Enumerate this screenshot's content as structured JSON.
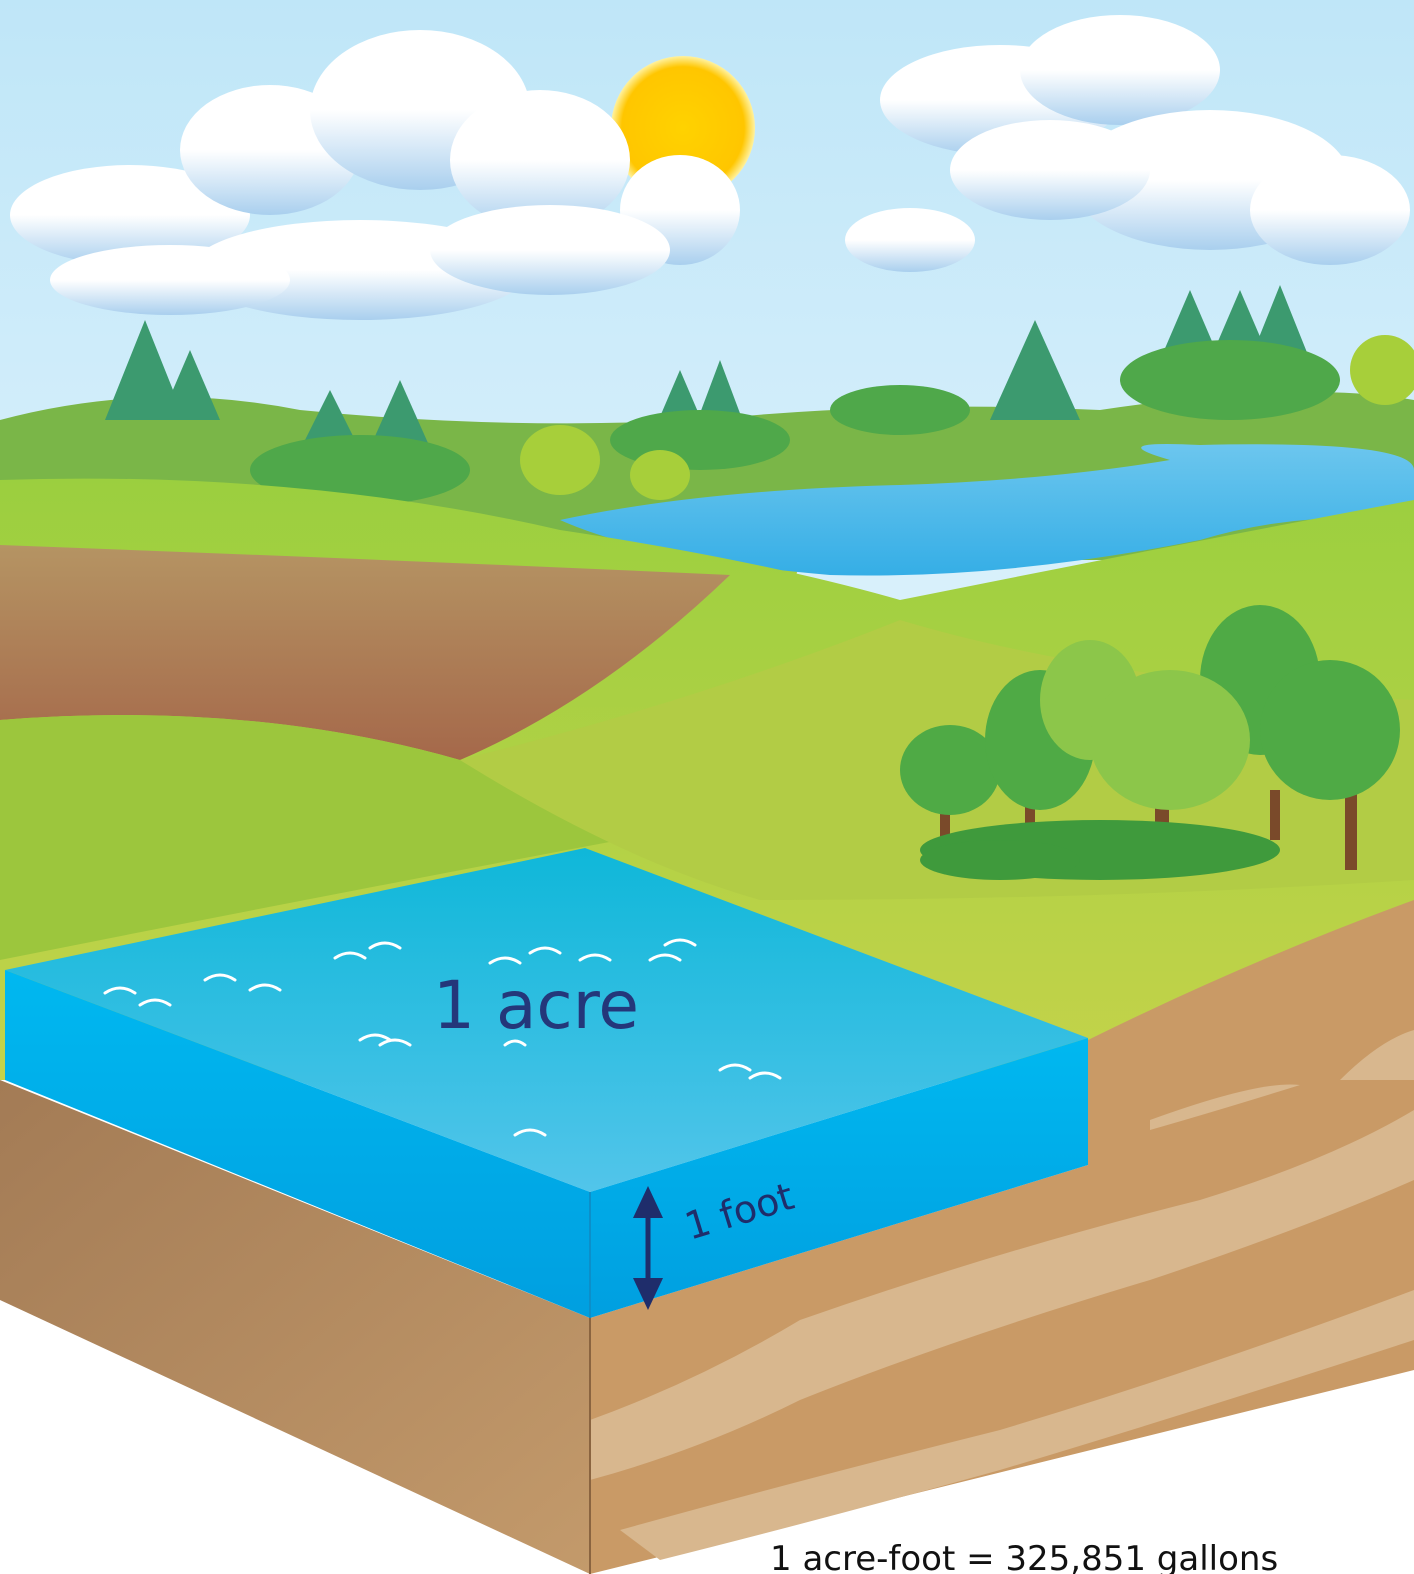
{
  "labels": {
    "area": "1 acre",
    "depth": "1 foot",
    "caption": "1 acre-foot = 325,851 gallons"
  }
}
